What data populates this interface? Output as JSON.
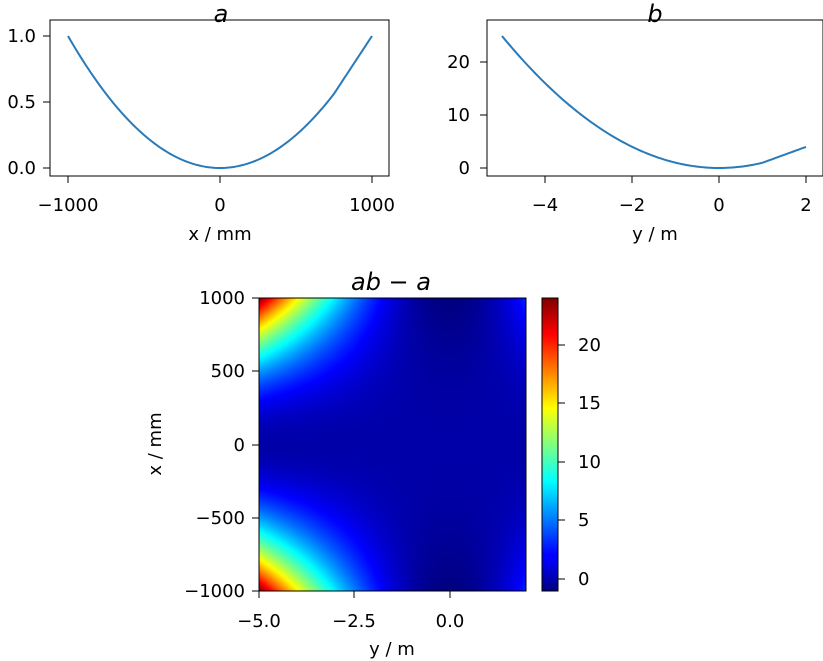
{
  "chart_data": [
    {
      "id": "a",
      "type": "line",
      "title": "a",
      "xlabel": "x / mm",
      "ylabel": "",
      "xlim": [
        -1000,
        1000
      ],
      "ylim": [
        0,
        1
      ],
      "xticks": [
        -1000,
        0,
        1000
      ],
      "xtick_labels": [
        "−1000",
        "0",
        "1000"
      ],
      "yticks": [
        0,
        0.5,
        1
      ],
      "ytick_labels": [
        "0.0",
        "0.5",
        "1.0"
      ],
      "series": [
        {
          "color": "#2a7ab8",
          "x": [
            -1000,
            -750,
            -500,
            -250,
            0,
            250,
            500,
            750,
            1000
          ],
          "y": [
            1.0,
            0.5625,
            0.25,
            0.0625,
            0.0,
            0.0625,
            0.25,
            0.5625,
            1.0
          ]
        }
      ]
    },
    {
      "id": "b",
      "type": "line",
      "title": "b",
      "xlabel": "y / m",
      "ylabel": "",
      "xlim": [
        -5,
        2
      ],
      "ylim": [
        0,
        25
      ],
      "xticks": [
        -4,
        -2,
        0,
        2
      ],
      "xtick_labels": [
        "−4",
        "−2",
        "0",
        "2"
      ],
      "yticks": [
        0,
        10,
        20
      ],
      "ytick_labels": [
        "0",
        "10",
        "20"
      ],
      "series": [
        {
          "color": "#2a7ab8",
          "x": [
            -5,
            -4,
            -3,
            -2,
            -1,
            0,
            1,
            2
          ],
          "y": [
            25,
            16,
            9,
            4,
            1,
            0,
            1,
            4
          ]
        }
      ]
    },
    {
      "id": "ab-a",
      "type": "heatmap",
      "title": "ab − a",
      "xlabel": "y / m",
      "ylabel": "x / mm",
      "xlim": [
        -5,
        2
      ],
      "ylim": [
        -1000,
        1000
      ],
      "xticks": [
        -5,
        -2.5,
        0
      ],
      "xtick_labels": [
        "−5.0",
        "−2.5",
        "0.0"
      ],
      "yticks": [
        -1000,
        -500,
        0,
        500,
        1000
      ],
      "ytick_labels": [
        "−1000",
        "−500",
        "0",
        "500",
        "1000"
      ],
      "function": "a(x)*b(y) - a(x), a = (x/1000)^2, b = y^2",
      "x_values": [
        -5,
        -4,
        -3,
        -2,
        -1,
        0,
        1,
        2
      ],
      "y_values": [
        -1000,
        -500,
        0,
        500,
        1000
      ],
      "z_values": [
        [
          24,
          15,
          8,
          3,
          0,
          -1,
          0,
          3
        ],
        [
          6,
          3.75,
          2,
          0.75,
          0,
          -0.25,
          0,
          0.75
        ],
        [
          0,
          0,
          0,
          0,
          0,
          0,
          0,
          0
        ],
        [
          6,
          3.75,
          2,
          0.75,
          0,
          -0.25,
          0,
          0.75
        ],
        [
          24,
          15,
          8,
          3,
          0,
          -1,
          0,
          3
        ]
      ],
      "zlim": [
        -1,
        24
      ],
      "colormap": "jet",
      "colorbar_ticks": [
        0,
        5,
        10,
        15,
        20
      ],
      "colorbar_tick_labels": [
        "0",
        "5",
        "10",
        "15",
        "20"
      ]
    }
  ]
}
